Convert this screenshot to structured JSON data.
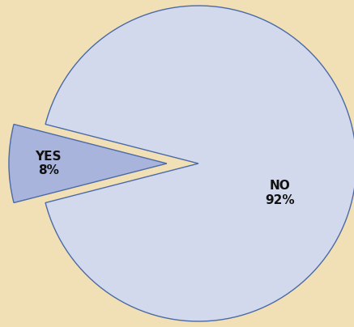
{
  "chart_data": {
    "type": "pie",
    "categories": [
      "YES",
      "NO"
    ],
    "values": [
      8,
      92
    ],
    "value_labels": [
      "8%",
      "92%"
    ],
    "colors": [
      "#a9b4dc",
      "#d2d9ec"
    ]
  }
}
